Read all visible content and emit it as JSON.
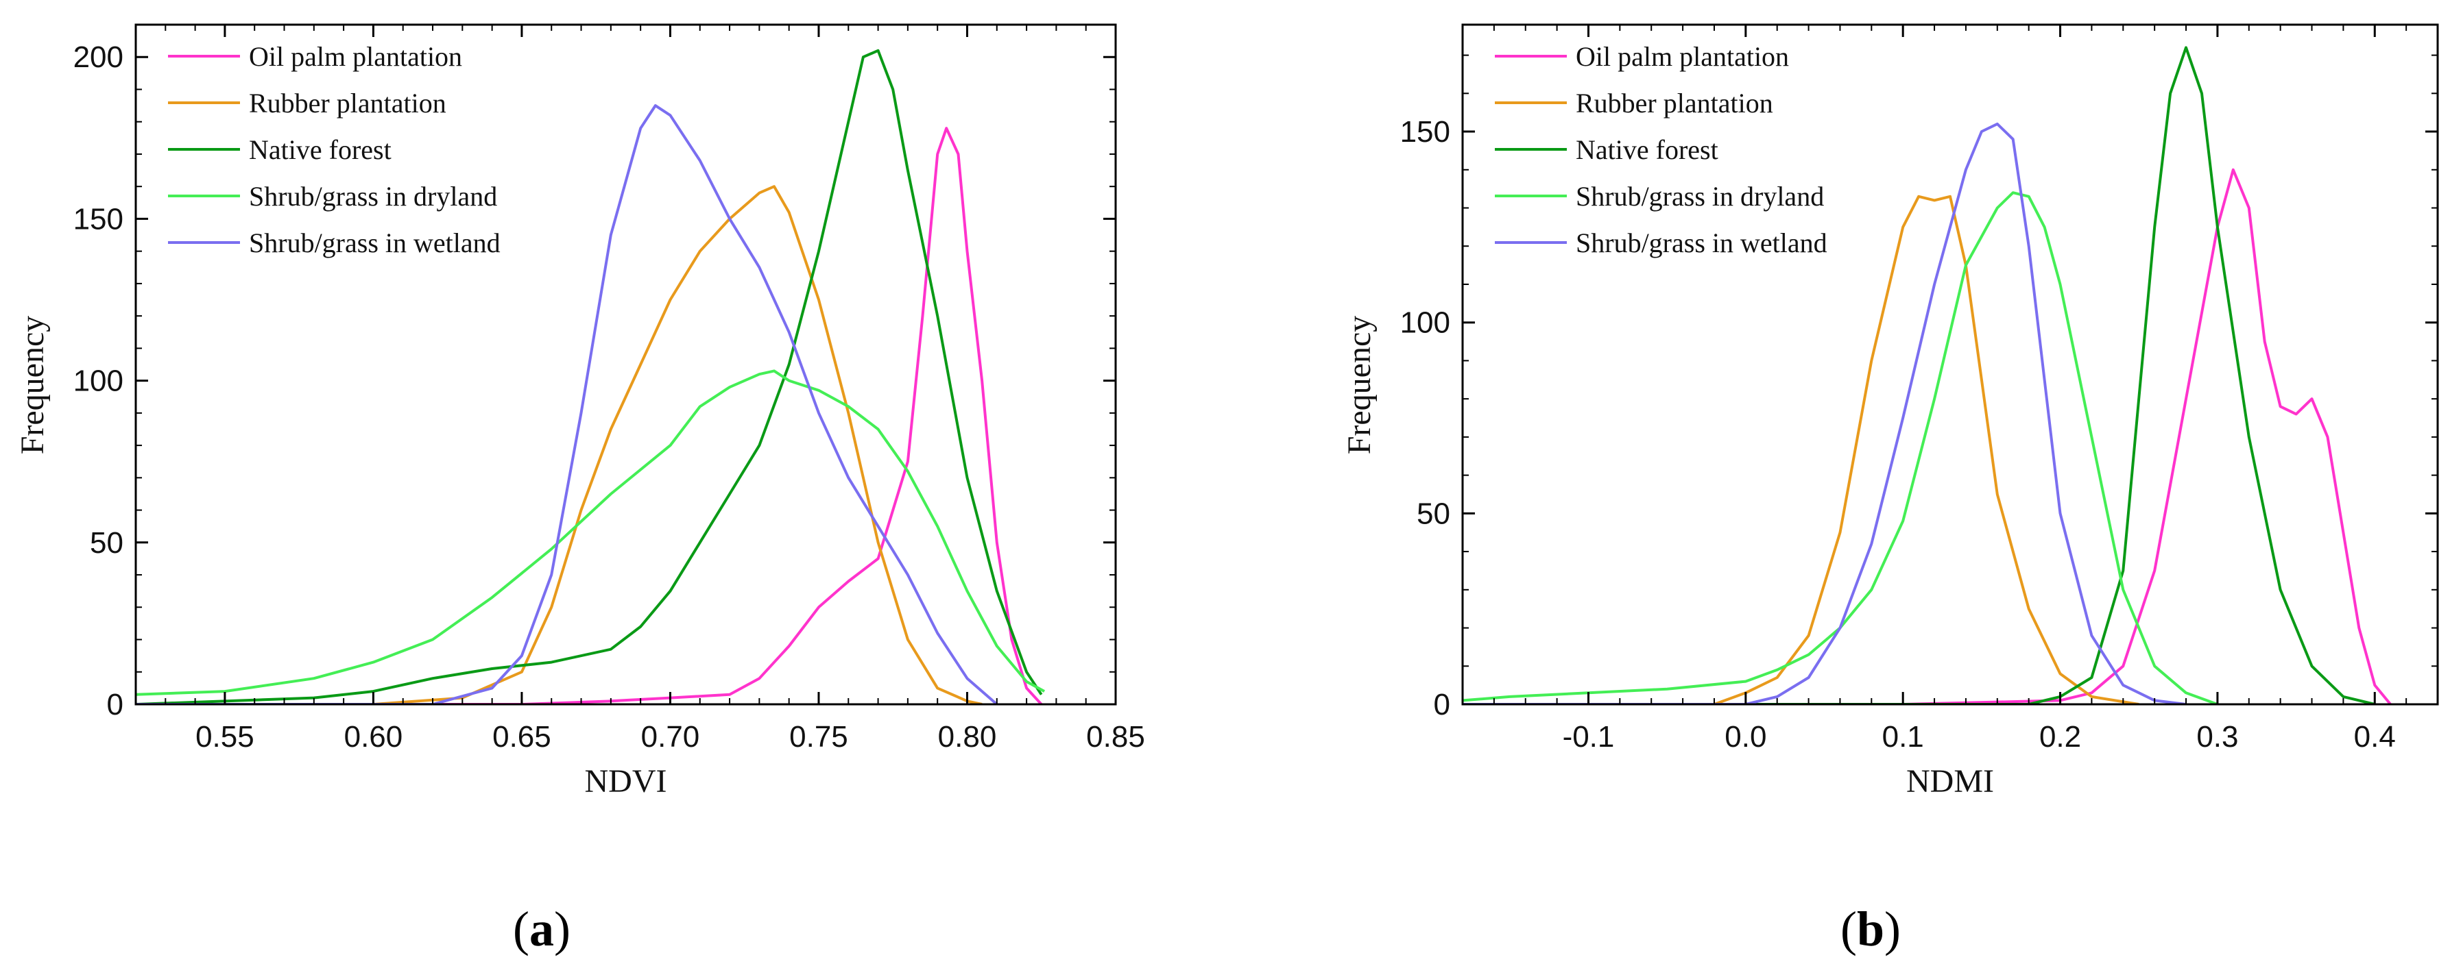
{
  "chart_data": [
    {
      "type": "line",
      "panel_label": "a",
      "title": "",
      "xlabel": "NDVI",
      "ylabel": "Frequency",
      "xlim": [
        0.52,
        0.85
      ],
      "ylim": [
        0,
        210
      ],
      "xticks": [
        0.55,
        0.6,
        0.65,
        0.7,
        0.75,
        0.8,
        0.85
      ],
      "xtick_labels": [
        "0.55",
        "0.60",
        "0.65",
        "0.70",
        "0.75",
        "0.80",
        "0.85"
      ],
      "yticks": [
        0,
        50,
        100,
        150,
        200
      ],
      "ytick_labels": [
        "0",
        "50",
        "100",
        "150",
        "200"
      ],
      "legend_position": "top-left",
      "series": [
        {
          "name": "Oil palm plantation",
          "color": "#ff33cc",
          "points": [
            [
              0.52,
              0
            ],
            [
              0.65,
              0
            ],
            [
              0.68,
              1
            ],
            [
              0.7,
              2
            ],
            [
              0.72,
              3
            ],
            [
              0.73,
              8
            ],
            [
              0.74,
              18
            ],
            [
              0.75,
              30
            ],
            [
              0.76,
              38
            ],
            [
              0.77,
              45
            ],
            [
              0.78,
              75
            ],
            [
              0.785,
              120
            ],
            [
              0.79,
              170
            ],
            [
              0.793,
              178
            ],
            [
              0.797,
              170
            ],
            [
              0.8,
              140
            ],
            [
              0.805,
              100
            ],
            [
              0.81,
              50
            ],
            [
              0.815,
              20
            ],
            [
              0.82,
              5
            ],
            [
              0.825,
              0
            ]
          ]
        },
        {
          "name": "Rubber plantation",
          "color": "#e89a1c",
          "points": [
            [
              0.52,
              0
            ],
            [
              0.6,
              0
            ],
            [
              0.63,
              2
            ],
            [
              0.65,
              10
            ],
            [
              0.66,
              30
            ],
            [
              0.67,
              60
            ],
            [
              0.68,
              85
            ],
            [
              0.69,
              105
            ],
            [
              0.7,
              125
            ],
            [
              0.71,
              140
            ],
            [
              0.72,
              150
            ],
            [
              0.73,
              158
            ],
            [
              0.735,
              160
            ],
            [
              0.74,
              152
            ],
            [
              0.75,
              125
            ],
            [
              0.76,
              90
            ],
            [
              0.77,
              50
            ],
            [
              0.78,
              20
            ],
            [
              0.79,
              5
            ],
            [
              0.8,
              1
            ],
            [
              0.805,
              0
            ]
          ]
        },
        {
          "name": "Native forest",
          "color": "#0a9a16",
          "points": [
            [
              0.52,
              0
            ],
            [
              0.58,
              2
            ],
            [
              0.6,
              4
            ],
            [
              0.62,
              8
            ],
            [
              0.64,
              11
            ],
            [
              0.66,
              13
            ],
            [
              0.68,
              17
            ],
            [
              0.69,
              24
            ],
            [
              0.7,
              35
            ],
            [
              0.71,
              50
            ],
            [
              0.72,
              65
            ],
            [
              0.73,
              80
            ],
            [
              0.74,
              105
            ],
            [
              0.75,
              140
            ],
            [
              0.76,
              180
            ],
            [
              0.765,
              200
            ],
            [
              0.77,
              202
            ],
            [
              0.775,
              190
            ],
            [
              0.78,
              165
            ],
            [
              0.79,
              120
            ],
            [
              0.8,
              70
            ],
            [
              0.81,
              35
            ],
            [
              0.82,
              10
            ],
            [
              0.825,
              3
            ]
          ]
        },
        {
          "name": "Shrub/grass in dryland",
          "color": "#44ee55",
          "points": [
            [
              0.52,
              3
            ],
            [
              0.55,
              4
            ],
            [
              0.58,
              8
            ],
            [
              0.6,
              13
            ],
            [
              0.62,
              20
            ],
            [
              0.64,
              33
            ],
            [
              0.66,
              48
            ],
            [
              0.68,
              65
            ],
            [
              0.7,
              80
            ],
            [
              0.71,
              92
            ],
            [
              0.72,
              98
            ],
            [
              0.73,
              102
            ],
            [
              0.735,
              103
            ],
            [
              0.74,
              100
            ],
            [
              0.75,
              97
            ],
            [
              0.76,
              92
            ],
            [
              0.77,
              85
            ],
            [
              0.78,
              72
            ],
            [
              0.79,
              55
            ],
            [
              0.8,
              35
            ],
            [
              0.81,
              18
            ],
            [
              0.82,
              7
            ],
            [
              0.826,
              4
            ]
          ]
        },
        {
          "name": "Shrub/grass in wetland",
          "color": "#7a6ef0",
          "points": [
            [
              0.52,
              0
            ],
            [
              0.62,
              0
            ],
            [
              0.64,
              5
            ],
            [
              0.65,
              15
            ],
            [
              0.66,
              40
            ],
            [
              0.67,
              90
            ],
            [
              0.68,
              145
            ],
            [
              0.69,
              178
            ],
            [
              0.695,
              185
            ],
            [
              0.7,
              182
            ],
            [
              0.71,
              168
            ],
            [
              0.72,
              150
            ],
            [
              0.73,
              135
            ],
            [
              0.74,
              115
            ],
            [
              0.75,
              90
            ],
            [
              0.76,
              70
            ],
            [
              0.77,
              55
            ],
            [
              0.78,
              40
            ],
            [
              0.79,
              22
            ],
            [
              0.8,
              8
            ],
            [
              0.81,
              0
            ]
          ]
        }
      ]
    },
    {
      "type": "line",
      "panel_label": "b",
      "title": "",
      "xlabel": "NDMI",
      "ylabel": "Frequency",
      "xlim": [
        -0.18,
        0.44
      ],
      "ylim": [
        0,
        178
      ],
      "xticks": [
        -0.1,
        0.0,
        0.1,
        0.2,
        0.3,
        0.4
      ],
      "xtick_labels": [
        "-0.1",
        "0.0",
        "0.1",
        "0.2",
        "0.3",
        "0.4"
      ],
      "yticks": [
        0,
        50,
        100,
        150
      ],
      "ytick_labels": [
        "0",
        "50",
        "100",
        "150"
      ],
      "legend_position": "top-left",
      "series": [
        {
          "name": "Oil palm plantation",
          "color": "#ff33cc",
          "points": [
            [
              -0.18,
              0
            ],
            [
              0.1,
              0
            ],
            [
              0.2,
              1
            ],
            [
              0.22,
              3
            ],
            [
              0.24,
              10
            ],
            [
              0.26,
              35
            ],
            [
              0.28,
              80
            ],
            [
              0.3,
              125
            ],
            [
              0.31,
              140
            ],
            [
              0.32,
              130
            ],
            [
              0.33,
              95
            ],
            [
              0.34,
              78
            ],
            [
              0.35,
              76
            ],
            [
              0.36,
              80
            ],
            [
              0.37,
              70
            ],
            [
              0.38,
              45
            ],
            [
              0.39,
              20
            ],
            [
              0.4,
              5
            ],
            [
              0.41,
              0
            ]
          ]
        },
        {
          "name": "Rubber plantation",
          "color": "#e89a1c",
          "points": [
            [
              -0.18,
              0
            ],
            [
              -0.02,
              0
            ],
            [
              0.0,
              3
            ],
            [
              0.02,
              7
            ],
            [
              0.04,
              18
            ],
            [
              0.06,
              45
            ],
            [
              0.08,
              90
            ],
            [
              0.1,
              125
            ],
            [
              0.11,
              133
            ],
            [
              0.12,
              132
            ],
            [
              0.13,
              133
            ],
            [
              0.14,
              115
            ],
            [
              0.15,
              85
            ],
            [
              0.16,
              55
            ],
            [
              0.18,
              25
            ],
            [
              0.2,
              8
            ],
            [
              0.22,
              2
            ],
            [
              0.25,
              0
            ]
          ]
        },
        {
          "name": "Native forest",
          "color": "#0a9a16",
          "points": [
            [
              -0.18,
              0
            ],
            [
              0.18,
              0
            ],
            [
              0.2,
              2
            ],
            [
              0.22,
              7
            ],
            [
              0.24,
              35
            ],
            [
              0.25,
              80
            ],
            [
              0.26,
              125
            ],
            [
              0.27,
              160
            ],
            [
              0.28,
              172
            ],
            [
              0.29,
              160
            ],
            [
              0.3,
              125
            ],
            [
              0.32,
              70
            ],
            [
              0.34,
              30
            ],
            [
              0.36,
              10
            ],
            [
              0.38,
              2
            ],
            [
              0.4,
              0
            ]
          ]
        },
        {
          "name": "Shrub/grass in dryland",
          "color": "#44ee55",
          "points": [
            [
              -0.18,
              1
            ],
            [
              -0.15,
              2
            ],
            [
              -0.1,
              3
            ],
            [
              -0.05,
              4
            ],
            [
              0.0,
              6
            ],
            [
              0.02,
              9
            ],
            [
              0.04,
              13
            ],
            [
              0.06,
              20
            ],
            [
              0.08,
              30
            ],
            [
              0.1,
              48
            ],
            [
              0.12,
              80
            ],
            [
              0.14,
              115
            ],
            [
              0.16,
              130
            ],
            [
              0.17,
              134
            ],
            [
              0.18,
              133
            ],
            [
              0.19,
              125
            ],
            [
              0.2,
              110
            ],
            [
              0.22,
              70
            ],
            [
              0.24,
              30
            ],
            [
              0.26,
              10
            ],
            [
              0.28,
              3
            ],
            [
              0.3,
              0
            ]
          ]
        },
        {
          "name": "Shrub/grass in wetland",
          "color": "#7a6ef0",
          "points": [
            [
              -0.18,
              0
            ],
            [
              0.0,
              0
            ],
            [
              0.02,
              2
            ],
            [
              0.04,
              7
            ],
            [
              0.06,
              20
            ],
            [
              0.08,
              42
            ],
            [
              0.1,
              75
            ],
            [
              0.12,
              110
            ],
            [
              0.14,
              140
            ],
            [
              0.15,
              150
            ],
            [
              0.16,
              152
            ],
            [
              0.17,
              148
            ],
            [
              0.18,
              120
            ],
            [
              0.19,
              85
            ],
            [
              0.2,
              50
            ],
            [
              0.22,
              18
            ],
            [
              0.24,
              5
            ],
            [
              0.26,
              1
            ],
            [
              0.28,
              0
            ]
          ]
        }
      ]
    }
  ]
}
